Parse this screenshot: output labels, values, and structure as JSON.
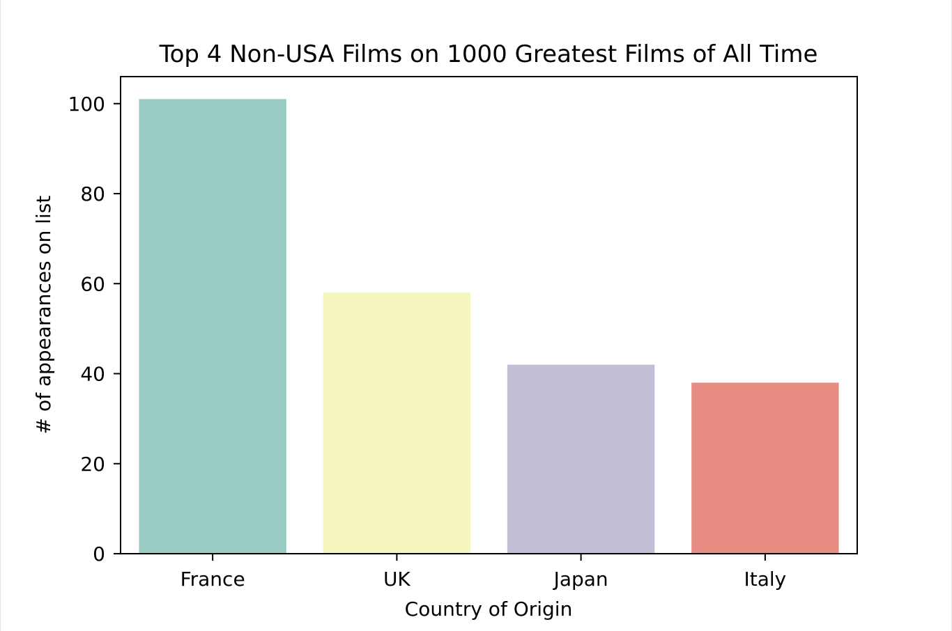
{
  "chart_data": {
    "type": "bar",
    "title": "Top 4 Non-USA Films on 1000 Greatest Films of All Time",
    "xlabel": "Country of Origin",
    "ylabel": "# of appearances on list",
    "categories": [
      "France",
      "UK",
      "Japan",
      "Italy"
    ],
    "values": [
      101,
      58,
      42,
      38
    ],
    "colors": [
      "#99cbc2",
      "#f5f5bf",
      "#c1bed5",
      "#e88c84"
    ],
    "ylim": [
      0,
      106
    ],
    "yticks": [
      0,
      20,
      40,
      60,
      80,
      100
    ],
    "grid": false,
    "legend": "none"
  }
}
